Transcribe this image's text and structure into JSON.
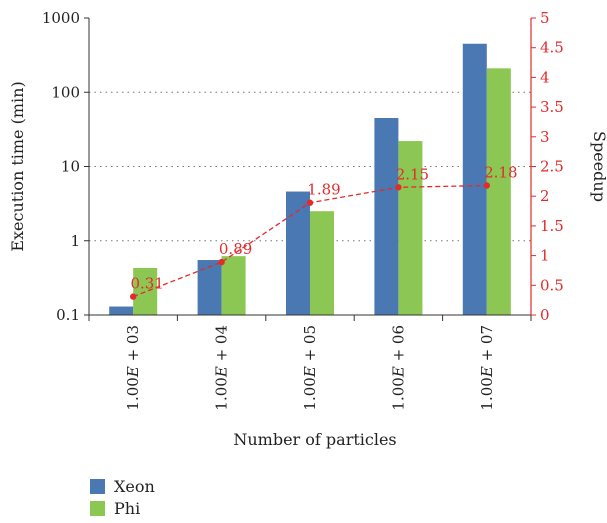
{
  "chart_data": {
    "type": "bar",
    "categories": [
      "1.00E + 03",
      "1.00E + 04",
      "1.00E + 05",
      "1.00E + 06",
      "1.00E + 07"
    ],
    "category_labels": [
      {
        "prefix": "1.00",
        "var": "E",
        "suffix": " + 03"
      },
      {
        "prefix": "1.00",
        "var": "E",
        "suffix": " + 04"
      },
      {
        "prefix": "1.00",
        "var": "E",
        "suffix": " + 05"
      },
      {
        "prefix": "1.00",
        "var": "E",
        "suffix": " + 06"
      },
      {
        "prefix": "1.00",
        "var": "E",
        "suffix": " + 07"
      }
    ],
    "series": [
      {
        "name": "Xeon",
        "values": [
          0.13,
          0.55,
          4.6,
          45,
          450
        ],
        "color": "#4a78b2"
      },
      {
        "name": "Phi",
        "values": [
          0.43,
          0.62,
          2.5,
          22,
          210
        ],
        "color": "#8cc653"
      }
    ],
    "line_series": {
      "values": [
        0.31,
        0.89,
        1.89,
        2.15,
        2.18
      ],
      "labels": [
        "0.31",
        "0.89",
        "1.89",
        "2.15",
        "2.18"
      ],
      "color": "#e32b2b",
      "axis": "right"
    },
    "xlabel": "Number of particles",
    "ylabel": "Execution time (min)",
    "ylabel_right": "Speedup",
    "y_scale": "log",
    "ylim": [
      0.1,
      1000
    ],
    "y_ticks": [
      0.1,
      1,
      10,
      100,
      1000
    ],
    "y_tick_labels": [
      "0.1",
      "1",
      "10",
      "100",
      "1000"
    ],
    "y_right_lim": [
      0,
      5
    ],
    "y_right_ticks": [
      0,
      0.5,
      1,
      1.5,
      2,
      2.5,
      3,
      3.5,
      4,
      4.5,
      5
    ],
    "y_right_tick_labels": [
      "0",
      "0.5",
      "1",
      "1.5",
      "2",
      "2.5",
      "3",
      "3.5",
      "4",
      "4.5",
      "5"
    ],
    "grid": "horizontal dotted",
    "legend_position": "bottom-left"
  }
}
